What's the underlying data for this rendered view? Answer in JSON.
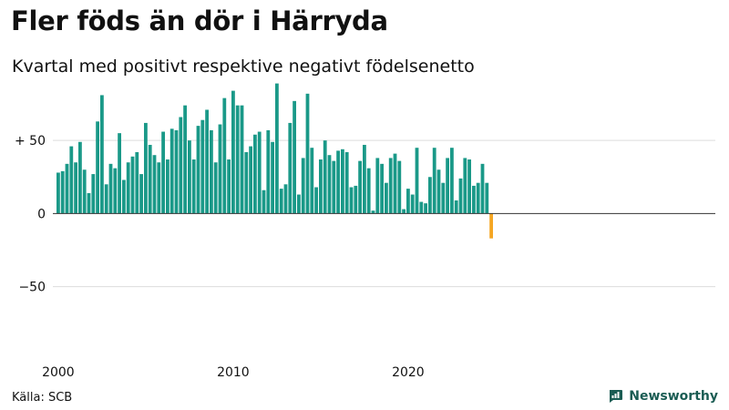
{
  "title": "Fler föds än dör i Härryda",
  "subtitle": "Kvartal med positivt respektive negativt födelsenetto",
  "source": "Källa: SCB",
  "brand": {
    "name": "Newsworthy",
    "icon": "newsworthy-logo-icon",
    "color": "#1a5c53"
  },
  "colors": {
    "positive": "#1a9988",
    "negative": "#f5a623",
    "grid": "#dddddd",
    "zero_line": "#333333"
  },
  "chart_data": {
    "type": "bar",
    "title": "Fler föds än dör i Härryda",
    "subtitle": "Kvartal med positivt respektive negativt födelsenetto",
    "xlabel": "",
    "ylabel": "",
    "ylim": [
      -97,
      90
    ],
    "grid": "horizontal",
    "y_ticks": [
      {
        "value": 50,
        "label": "+ 50"
      },
      {
        "value": 0,
        "label": "0"
      },
      {
        "value": -50,
        "label": "−50"
      }
    ],
    "x_ticks": [
      {
        "value": 2000,
        "label": "2000"
      },
      {
        "value": 2010,
        "label": "2010"
      },
      {
        "value": 2020,
        "label": "2020"
      }
    ],
    "x_start": 2000,
    "period": "quarter",
    "values": [
      28,
      29,
      34,
      46,
      35,
      49,
      30,
      14,
      27,
      63,
      81,
      20,
      34,
      31,
      55,
      23,
      35,
      39,
      42,
      27,
      62,
      47,
      40,
      35,
      56,
      37,
      58,
      57,
      66,
      74,
      50,
      37,
      60,
      64,
      71,
      57,
      35,
      61,
      79,
      37,
      84,
      74,
      74,
      42,
      46,
      54,
      56,
      16,
      57,
      49,
      89,
      17,
      20,
      62,
      77,
      13,
      38,
      82,
      45,
      18,
      37,
      50,
      40,
      36,
      43,
      44,
      42,
      18,
      19,
      36,
      47,
      31,
      2,
      38,
      34,
      21,
      38,
      41,
      36,
      3,
      17,
      13,
      45,
      8,
      7,
      25,
      45,
      30,
      21,
      38,
      45,
      9,
      24,
      38,
      37,
      19,
      21,
      34,
      21,
      -17
    ]
  }
}
